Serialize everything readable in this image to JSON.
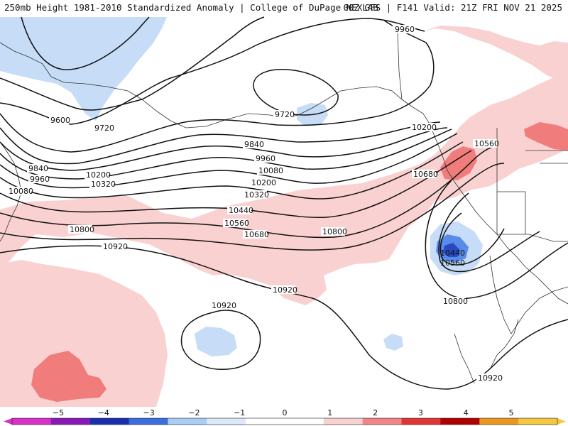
{
  "header": {
    "left": "250mb Height 1981-2010 Standardized Anomaly | College of DuPage NEXLAB",
    "right": "00Z GFS | F141 Valid: 21Z FRI NOV 21 2025"
  },
  "contour_labels": {
    "l9960_top": "9960",
    "l9600": "9600",
    "l9720_w": "9720",
    "l9720_c": "9720",
    "l9840_w": "9840",
    "l9840_c": "9840",
    "l9960_w": "9960",
    "l9960_c": "9960",
    "l10080_w": "10080",
    "l10080_c": "10080",
    "l10200_w": "10200",
    "l10200_c": "10200",
    "l10200_e": "10200",
    "l10320_w": "10320",
    "l10320_c": "10320",
    "l10440_c": "10440",
    "l10440_low": "10440",
    "l10560_c": "10560",
    "l10560_e": "10560",
    "l10560_low": "10560",
    "l10680_c": "10680",
    "l10680_e": "10680",
    "l10800_w": "10800",
    "l10800_c": "10800",
    "l10800_s": "10800",
    "l10920_w": "10920",
    "l10920_c": "10920",
    "l10920_hi": "10920",
    "l10920_se": "10920"
  },
  "colorbar": {
    "ticks": [
      "−5",
      "−4",
      "−3",
      "−2",
      "−1",
      "0",
      "1",
      "2",
      "3",
      "4",
      "5"
    ],
    "colors": [
      "#d930c8",
      "#8a1ab8",
      "#1a2fb0",
      "#3a6de0",
      "#a9cdf5",
      "#dbe9fb",
      "#ffffff",
      "#ffffff",
      "#fad1d1",
      "#f28585",
      "#e03535",
      "#b00000",
      "#e89a20",
      "#f5c842"
    ]
  }
}
